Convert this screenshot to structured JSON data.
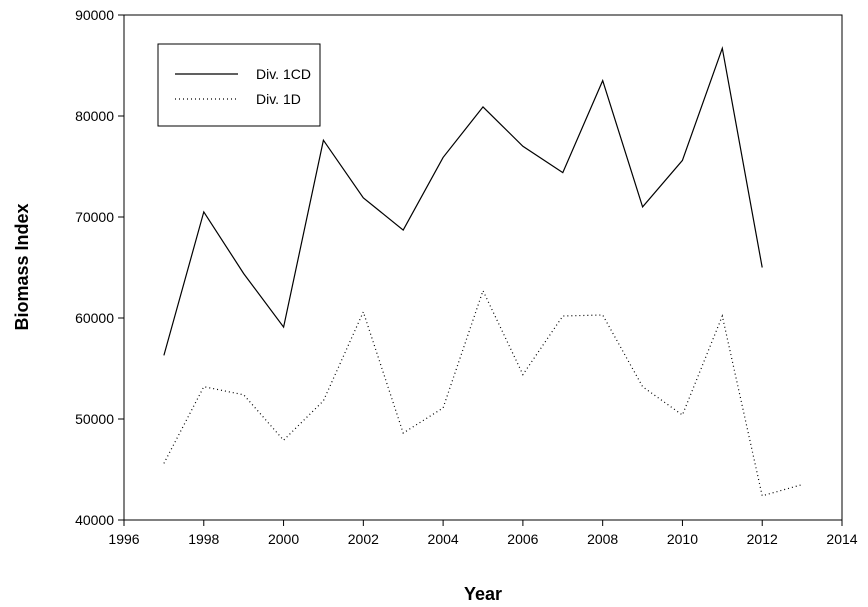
{
  "chart_data": {
    "type": "line",
    "title": "",
    "xlabel": "Year",
    "ylabel": "Biomass Index",
    "xlim": [
      1996,
      2014
    ],
    "ylim": [
      40000,
      90000
    ],
    "xticks": [
      1996,
      1998,
      2000,
      2002,
      2004,
      2006,
      2008,
      2010,
      2012,
      2014
    ],
    "yticks": [
      40000,
      50000,
      60000,
      70000,
      80000,
      90000
    ],
    "grid": false,
    "legend": "top-left",
    "series": [
      {
        "name": "Div. 1CD",
        "style": "solid",
        "color": "#000000",
        "x": [
          1997,
          1998,
          1999,
          2000,
          2001,
          2002,
          2003,
          2004,
          2005,
          2006,
          2007,
          2008,
          2009,
          2010,
          2011,
          2012
        ],
        "y": [
          56300,
          70500,
          64400,
          59100,
          77600,
          71900,
          68700,
          75900,
          80900,
          77000,
          74400,
          83500,
          71000,
          75600,
          86700,
          65000
        ]
      },
      {
        "name": "Div. 1D",
        "style": "dotted",
        "color": "#000000",
        "x": [
          1997,
          1998,
          1999,
          2000,
          2001,
          2002,
          2003,
          2004,
          2005,
          2006,
          2007,
          2008,
          2009,
          2010,
          2011,
          2012,
          2013
        ],
        "y": [
          45600,
          53200,
          52400,
          47900,
          51800,
          60600,
          48600,
          51100,
          62700,
          54400,
          60200,
          60300,
          53200,
          50400,
          60200,
          42400,
          43500
        ]
      }
    ]
  }
}
